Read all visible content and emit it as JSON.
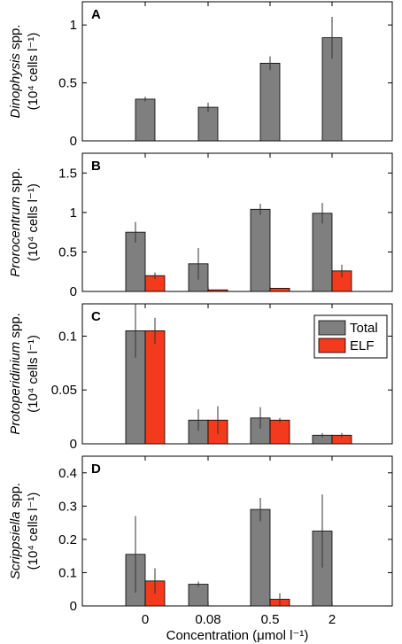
{
  "chart_data": {
    "type": "bar",
    "categories": [
      "0",
      "0.08",
      "0.5",
      "2"
    ],
    "xlabel": "Concentration (μmol l⁻¹)",
    "colors": {
      "Total": "#7f7f7f",
      "ELF": "#f23a1c"
    },
    "legend": {
      "position": "top-right",
      "panel": "C",
      "entries": [
        "Total",
        "ELF"
      ]
    },
    "panels": [
      {
        "letter": "A",
        "ylabel_italic": "Dinophysis",
        "ylabel_rest": " spp.",
        "ylabel_line2": "(10⁴ cells l⁻¹)",
        "ylim": [
          0,
          1.2
        ],
        "yticks": [
          0,
          0.5,
          1
        ],
        "yticklabels": [
          "0",
          "0.5",
          "1"
        ],
        "series": [
          {
            "name": "Total",
            "values": [
              0.36,
              0.29,
              0.67,
              0.89
            ],
            "errors": [
              0.02,
              0.04,
              0.06,
              0.18
            ]
          }
        ]
      },
      {
        "letter": "B",
        "ylabel_italic": "Prorocentrum",
        "ylabel_rest": " spp.",
        "ylabel_line2": "(10⁴ cells l⁻¹)",
        "ylim": [
          0,
          1.75
        ],
        "yticks": [
          0,
          0.5,
          1,
          1.5
        ],
        "yticklabels": [
          "0",
          "0.5",
          "1",
          "1.5"
        ],
        "series": [
          {
            "name": "Total",
            "values": [
              0.75,
              0.35,
              1.04,
              0.99
            ],
            "errors": [
              0.13,
              0.2,
              0.07,
              0.13
            ]
          },
          {
            "name": "ELF",
            "values": [
              0.2,
              0.02,
              0.04,
              0.26
            ],
            "errors": [
              0.04,
              0.0,
              0.0,
              0.08
            ]
          }
        ]
      },
      {
        "letter": "C",
        "ylabel_italic": "Protoperidinium",
        "ylabel_rest": " spp.",
        "ylabel_line2": "(10⁴ cells l⁻¹)",
        "ylim": [
          0,
          0.13
        ],
        "yticks": [
          0,
          0.05,
          0.1
        ],
        "yticklabels": [
          "0",
          "0.05",
          "0.1"
        ],
        "series": [
          {
            "name": "Total",
            "values": [
              0.105,
              0.022,
              0.024,
              0.008
            ],
            "errors": [
              0.025,
              0.01,
              0.01,
              0.002
            ]
          },
          {
            "name": "ELF",
            "values": [
              0.105,
              0.022,
              0.022,
              0.008
            ],
            "errors": [
              0.012,
              0.013,
              0.002,
              0.002
            ]
          }
        ]
      },
      {
        "letter": "D",
        "ylabel_italic": "Scrippsiella",
        "ylabel_rest": " spp.",
        "ylabel_line2": "(10⁴ cells l⁻¹)",
        "ylim": [
          0,
          0.45
        ],
        "yticks": [
          0,
          0.1,
          0.2,
          0.3,
          0.4
        ],
        "yticklabels": [
          "0",
          "0.1",
          "0.2",
          "0.3",
          "0.4"
        ],
        "series": [
          {
            "name": "Total",
            "values": [
              0.155,
              0.065,
              0.29,
              0.225
            ],
            "errors": [
              0.115,
              0.008,
              0.035,
              0.11
            ]
          },
          {
            "name": "ELF",
            "values": [
              0.075,
              0.0,
              0.02,
              0.0
            ],
            "errors": [
              0.038,
              0.0,
              0.018,
              0.0
            ]
          }
        ]
      }
    ]
  }
}
